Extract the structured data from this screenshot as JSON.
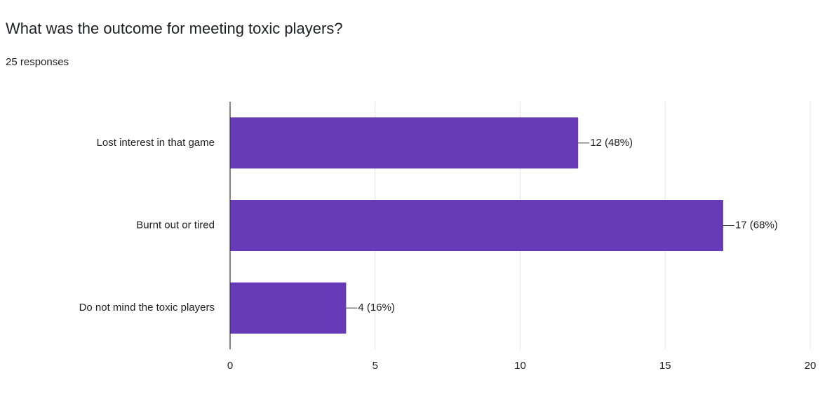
{
  "chart_data": {
    "type": "bar",
    "orientation": "horizontal",
    "title": "What was the outcome for meeting toxic players?",
    "subtitle": "25 responses",
    "categories": [
      "Lost interest in that game",
      "Burnt out or tired",
      "Do not mind the toxic players"
    ],
    "values": [
      12,
      17,
      4
    ],
    "value_labels": [
      "12 (48%)",
      "17 (68%)",
      "4 (16%)"
    ],
    "color": "#673ab7",
    "xlim": [
      0,
      20
    ],
    "xticks": [
      0,
      5,
      10,
      15,
      20
    ],
    "grid": true
  }
}
